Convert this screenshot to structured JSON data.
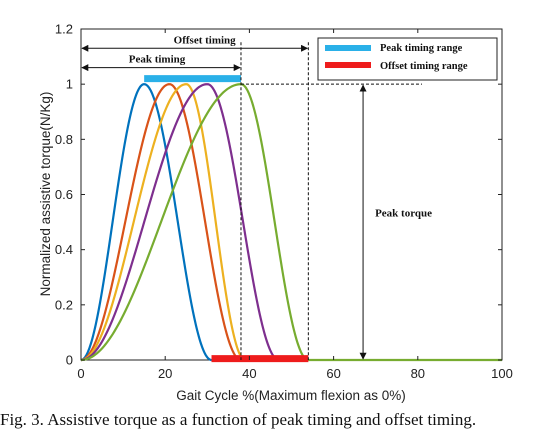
{
  "caption": "Fig. 3. Assistive torque as a function of peak timing and offset timing.",
  "chart_data": {
    "type": "line",
    "xlabel": "Gait Cycle %(Maximum flexion as 0%)",
    "ylabel": "Normalized assistive torque(N/Kg)",
    "xlim": [
      0,
      100
    ],
    "ylim": [
      0,
      1.2
    ],
    "xticks": [
      0,
      20,
      40,
      60,
      80,
      100
    ],
    "yticks": [
      0,
      0.2,
      0.4,
      0.6,
      0.8,
      1,
      1.2
    ],
    "xtick_labels": [
      "0",
      "20",
      "40",
      "60",
      "80",
      "100"
    ],
    "ytick_labels": [
      "0",
      "0.2",
      "0.4",
      "0.6",
      "0.8",
      "1",
      "1.2"
    ],
    "grid": false,
    "legend_position": "top-right",
    "legend": [
      {
        "label": "Peak timing range",
        "color": "#2ab0e8"
      },
      {
        "label": "Offset timing range",
        "color": "#ee1c1c"
      }
    ],
    "curves": [
      {
        "color": "#0072bd",
        "onset": 0,
        "peak": 15,
        "offset": 31
      },
      {
        "color": "#d95319",
        "onset": 0,
        "peak": 21,
        "offset": 38
      },
      {
        "color": "#edb120",
        "onset": 0,
        "peak": 25,
        "offset": 39
      },
      {
        "color": "#7e2f8e",
        "onset": 0,
        "peak": 30,
        "offset": 47
      },
      {
        "color": "#77ac30",
        "onset": 0,
        "peak": 38,
        "offset": 54
      }
    ],
    "baseline": {
      "color": "#77ac30",
      "x": [
        54,
        100
      ],
      "y": 0
    },
    "ranges": [
      {
        "name": "peak-timing-range",
        "color": "#2ab0e8",
        "x": [
          15,
          38
        ],
        "y": 1.02
      },
      {
        "name": "offset-timing-range",
        "color": "#ee1c1c",
        "x": [
          31,
          54
        ],
        "y": 0.005
      }
    ],
    "annotations": {
      "offset_timing": {
        "text": "Offset timing",
        "x_from": 0,
        "x_to": 54,
        "y": 1.13
      },
      "peak_timing": {
        "text": "Peak timing",
        "x_from": 0,
        "x_to": 38,
        "y": 1.06
      },
      "peak_torque": {
        "text": "Peak torque",
        "x": 67,
        "y_from": 0,
        "y_to": 1
      }
    },
    "guide_lines": {
      "vertical_x": [
        38,
        54
      ],
      "horizontal_y": 1,
      "horizontal_x_to": 81
    }
  }
}
